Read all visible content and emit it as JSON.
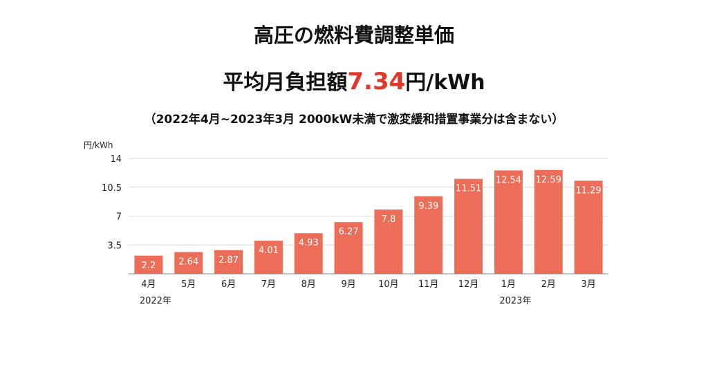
{
  "title": "高圧の燃料費調整単価",
  "subtitle": {
    "prefix": "平均月負担額",
    "value": "7.34",
    "suffix": "円/kWh",
    "value_color": "#e0392b"
  },
  "note": "（2022年4月~2023年3月 2000kW未満で激変緩和措置事業分は含まない）",
  "chart_data": {
    "type": "bar",
    "ylabel": "円/kWh",
    "ylim": [
      0,
      14
    ],
    "yticks": [
      "3.5",
      "7",
      "10.5",
      "14"
    ],
    "grid": true,
    "categories": [
      "4月",
      "5月",
      "6月",
      "7月",
      "8月",
      "9月",
      "10月",
      "11月",
      "12月",
      "1月",
      "2月",
      "3月"
    ],
    "year_labels": [
      {
        "index": 0,
        "label": "2022年"
      },
      {
        "index": 9,
        "label": "2023年"
      }
    ],
    "values": [
      2.2,
      2.64,
      2.87,
      4.01,
      4.93,
      6.27,
      7.8,
      9.39,
      11.51,
      12.54,
      12.59,
      11.29
    ],
    "bar_color": "#ec6e59"
  }
}
